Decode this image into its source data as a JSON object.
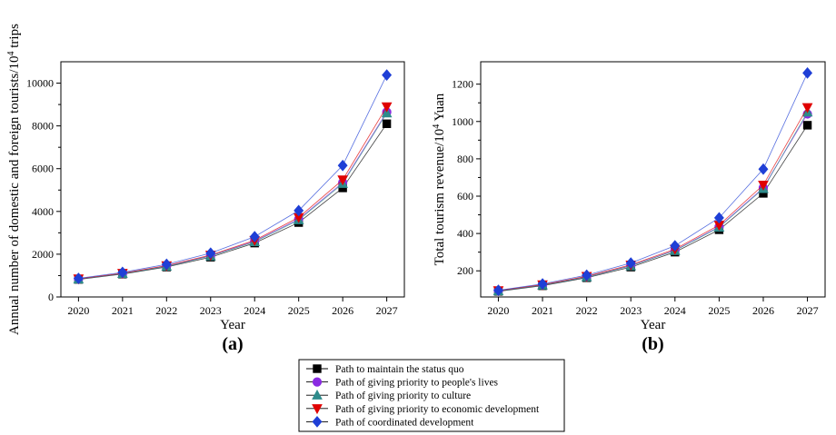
{
  "chart_data": [
    {
      "id": "a",
      "type": "line",
      "panel_label": "(a)",
      "xlabel": "Year",
      "ylabel_main": "Annual number of domestic and foreign tourists/10",
      "ylabel_sup": "4",
      "ylabel_tail": " trips",
      "x": [
        "2020",
        "2021",
        "2022",
        "2023",
        "2024",
        "2025",
        "2026",
        "2027"
      ],
      "xlim": [
        2019.6,
        2027.4
      ],
      "ylim": [
        0,
        11000
      ],
      "yticks": [
        0,
        2000,
        4000,
        6000,
        8000,
        10000
      ],
      "grid": false,
      "series": [
        {
          "name": "Path to maintain the status quo",
          "color": "#000000",
          "marker": "square",
          "values": [
            820,
            1070,
            1400,
            1860,
            2520,
            3480,
            5100,
            8100
          ]
        },
        {
          "name": "Path of giving priority to people's lives",
          "color": "#8a2be2",
          "marker": "circle",
          "values": [
            840,
            1100,
            1450,
            1930,
            2610,
            3640,
            5350,
            8650
          ]
        },
        {
          "name": "Path of giving priority to culture",
          "color": "#2e8b8b",
          "marker": "triangle-up",
          "values": [
            830,
            1090,
            1430,
            1910,
            2580,
            3600,
            5300,
            8600
          ]
        },
        {
          "name": "Path of giving priority to economic development",
          "color": "#e00000",
          "marker": "triangle-down",
          "values": [
            850,
            1110,
            1470,
            1960,
            2650,
            3720,
            5480,
            8900
          ]
        },
        {
          "name": "Path of coordinated development",
          "color": "#1f3fd6",
          "marker": "diamond",
          "values": [
            870,
            1150,
            1530,
            2050,
            2820,
            4040,
            6150,
            10380
          ]
        }
      ]
    },
    {
      "id": "b",
      "type": "line",
      "panel_label": "(b)",
      "xlabel": "Year",
      "ylabel_main": "Total tourism revenue/10",
      "ylabel_sup": "4",
      "ylabel_tail": " Yuan",
      "x": [
        "2020",
        "2021",
        "2022",
        "2023",
        "2024",
        "2025",
        "2026",
        "2027"
      ],
      "xlim": [
        2019.6,
        2027.4
      ],
      "ylim": [
        60,
        1320
      ],
      "yticks": [
        200,
        400,
        600,
        800,
        1000,
        1200
      ],
      "grid": false,
      "series": [
        {
          "name": "Path to maintain the status quo",
          "color": "#000000",
          "marker": "square",
          "values": [
            90,
            120,
            163,
            220,
            300,
            420,
            615,
            980
          ]
        },
        {
          "name": "Path of giving priority to people's lives",
          "color": "#8a2be2",
          "marker": "circle",
          "values": [
            93,
            124,
            168,
            228,
            310,
            436,
            645,
            1040
          ]
        },
        {
          "name": "Path of giving priority to culture",
          "color": "#2e8b8b",
          "marker": "triangle-up",
          "values": [
            92,
            123,
            167,
            226,
            308,
            433,
            640,
            1050
          ]
        },
        {
          "name": "Path of giving priority to economic development",
          "color": "#e00000",
          "marker": "triangle-down",
          "values": [
            94,
            126,
            171,
            232,
            316,
            445,
            660,
            1075
          ]
        },
        {
          "name": "Path of coordinated development",
          "color": "#1f3fd6",
          "marker": "diamond",
          "values": [
            96,
            130,
            177,
            242,
            334,
            484,
            745,
            1260
          ]
        }
      ]
    }
  ],
  "legend": {
    "placement": "bottom-center",
    "entries": [
      "Path to maintain the status quo",
      "Path of giving priority to people's lives",
      "Path of giving priority to culture",
      "Path of giving priority to economic development",
      "Path of coordinated development"
    ]
  }
}
